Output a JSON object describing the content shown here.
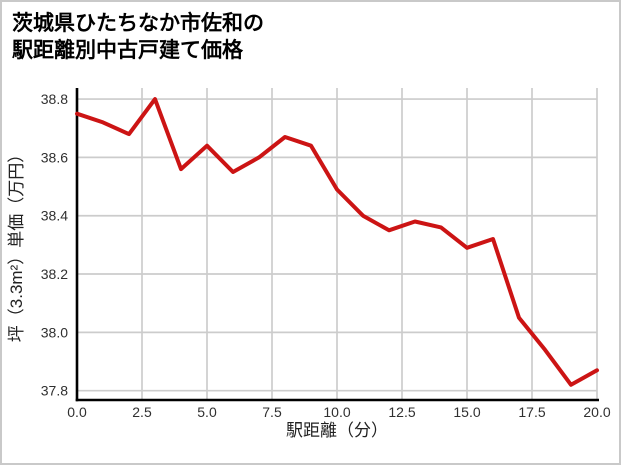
{
  "title": {
    "line1": "茨城県ひたちなか市佐和の",
    "line2": "駅距離別中古戸建て価格"
  },
  "colors": {
    "line": "#cc1414",
    "grid": "#cccccc",
    "spine": "#000000",
    "tick_text": "#303030",
    "title_text": "#000000",
    "border": "#c9c9c9",
    "background": "#ffffff"
  },
  "chart_data": {
    "type": "line",
    "title": "茨城県ひたちなか市佐和の駅距離別中古戸建て価格",
    "xlabel": "駅距離（分）",
    "ylabel": "坪（3.3m²）単価（万円）",
    "x": [
      0,
      1,
      2,
      3,
      4,
      5,
      6,
      7,
      8,
      9,
      10,
      11,
      12,
      13,
      14,
      15,
      16,
      17,
      18,
      19,
      20
    ],
    "values": [
      38.75,
      38.72,
      38.68,
      38.8,
      38.56,
      38.64,
      38.55,
      38.6,
      38.67,
      38.64,
      38.49,
      38.4,
      38.35,
      38.38,
      38.36,
      38.29,
      38.32,
      38.05,
      37.94,
      37.82,
      37.87
    ],
    "xticks": [
      0,
      2.5,
      5,
      7.5,
      10,
      12.5,
      15,
      17.5,
      20
    ],
    "xtick_labels": [
      "0.0",
      "2.5",
      "5.0",
      "7.5",
      "10.0",
      "12.5",
      "15.0",
      "17.5",
      "20.0"
    ],
    "yticks": [
      37.8,
      38.0,
      38.2,
      38.4,
      38.6,
      38.8
    ],
    "ytick_labels": [
      "37.8",
      "38.0",
      "38.2",
      "38.4",
      "38.6",
      "38.8"
    ],
    "xlim": [
      0,
      20
    ],
    "ylim": [
      37.768,
      38.838
    ],
    "grid": true,
    "legend": false,
    "line_color": "#cc1414"
  }
}
